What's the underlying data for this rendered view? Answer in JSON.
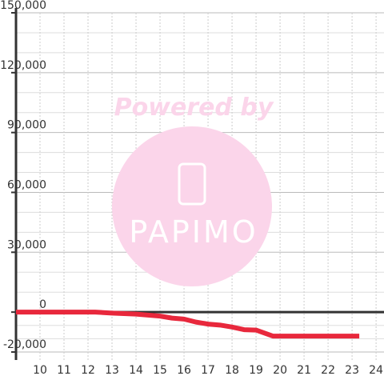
{
  "chart_data": {
    "type": "line",
    "x": [
      9,
      12.3,
      13,
      14,
      15,
      15.5,
      16,
      16.5,
      17,
      17.5,
      18,
      18.5,
      19,
      19.7,
      23.3
    ],
    "series": [
      {
        "color": "#e8283c",
        "values": [
          0,
          0,
          -500,
          -1000,
          -2000,
          -3000,
          -3500,
          -5000,
          -6000,
          -6500,
          -7500,
          -8800,
          -9000,
          -12000,
          -12000
        ]
      }
    ],
    "xlim": [
      9,
      24.33
    ],
    "xticks": [
      10,
      11,
      12,
      13,
      14,
      15,
      16,
      17,
      18,
      19,
      20,
      21,
      22,
      23,
      24
    ],
    "ylim": [
      -24000,
      150000
    ],
    "yticks": [
      {
        "value": -20000,
        "label": "-20,000"
      },
      0,
      {
        "value": 30000,
        "label": "30,000"
      },
      {
        "value": 60000,
        "label": "60,000"
      },
      {
        "value": 90000,
        "label": "90,000"
      },
      {
        "value": 120000,
        "label": "120,000"
      },
      {
        "value": 150000,
        "label": "150,000"
      }
    ],
    "grid": true,
    "watermark": {
      "text": "Powered by",
      "logo": "PAPIMO"
    }
  }
}
